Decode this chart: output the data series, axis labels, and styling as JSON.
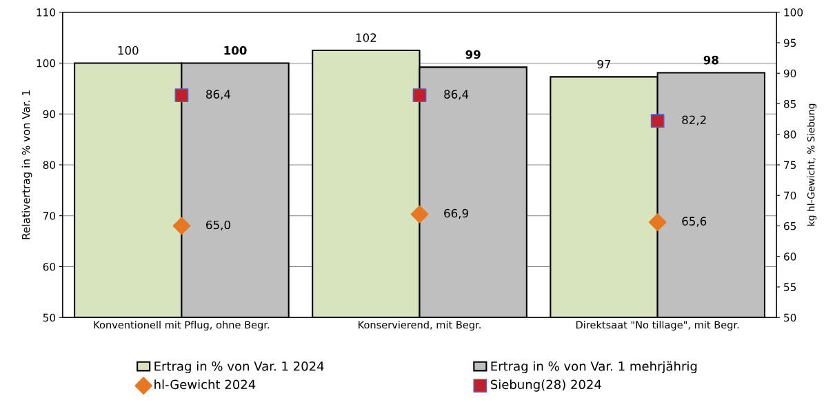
{
  "chart_data": {
    "type": "bar",
    "categories": [
      "Konventionell mit Pflug, ohne Begr.",
      "Konservierend, mit Begr.",
      "Direktsaat \"No tillage\", mit Begr."
    ],
    "ylabel": "Relativertrag in % von Var. 1",
    "y2label": "kg hl-Gewicht, % Siebung",
    "ylim": [
      50,
      110
    ],
    "yticks": [
      50,
      60,
      70,
      80,
      90,
      100,
      110
    ],
    "y2lim": [
      50,
      100
    ],
    "y2ticks": [
      50,
      55,
      60,
      65,
      70,
      75,
      80,
      85,
      90,
      95,
      100
    ],
    "grid": "y",
    "legend": "bottom",
    "series": [
      {
        "name": "Ertrag in % von Var. 1 2024",
        "color": "#d7e4bd",
        "values": [
          100,
          102.5,
          97.3
        ],
        "value_labels": [
          "100",
          "102",
          "97"
        ]
      },
      {
        "name": "Ertrag in % von Var. 1 mehrjährig",
        "color": "#bfbfbf",
        "values": [
          100,
          99.2,
          98.1
        ],
        "value_labels": [
          "100",
          "99",
          "98"
        ]
      },
      {
        "name": "hl-Gewicht 2024",
        "type": "scatter",
        "axis": "y2",
        "marker": "diamond",
        "color": "#e87722",
        "values": [
          65.0,
          66.9,
          65.6
        ],
        "value_labels": [
          "65,0",
          "66,9",
          "65,6"
        ]
      },
      {
        "name": "Siebung(28) 2024",
        "type": "scatter",
        "axis": "y2",
        "marker": "square",
        "color": "#c0202a",
        "values": [
          86.4,
          86.4,
          82.2
        ],
        "value_labels": [
          "86,4",
          "86,4",
          "82,2"
        ]
      }
    ]
  }
}
